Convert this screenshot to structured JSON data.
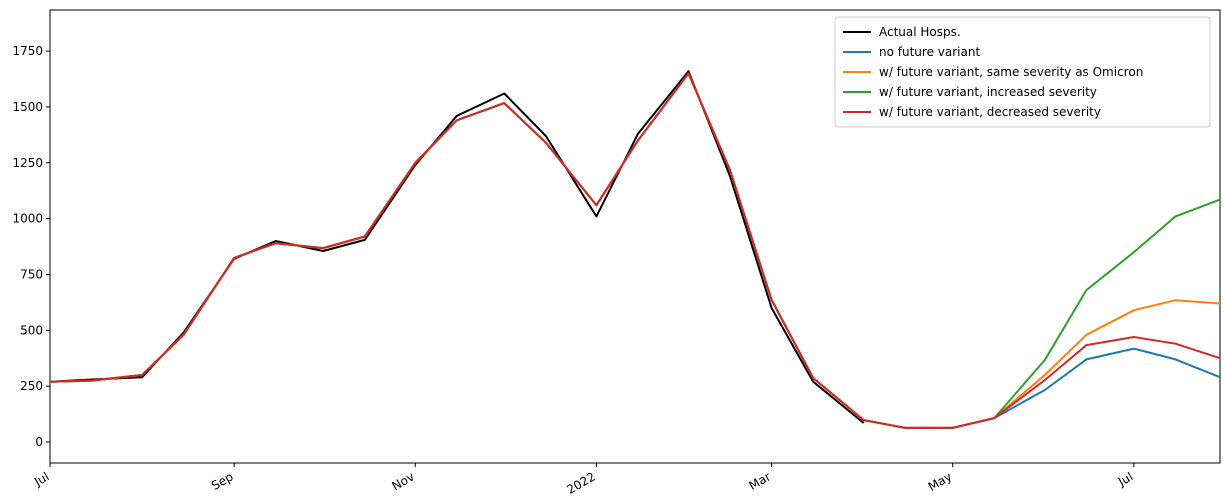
{
  "chart_data": {
    "type": "line",
    "x": [
      "2021-07-01",
      "2021-07-15",
      "2021-08-01",
      "2021-08-15",
      "2021-09-01",
      "2021-09-15",
      "2021-10-01",
      "2021-10-15",
      "2021-11-01",
      "2021-11-15",
      "2021-12-01",
      "2021-12-15",
      "2022-01-01",
      "2022-01-15",
      "2022-02-01",
      "2022-02-15",
      "2022-03-01",
      "2022-03-15",
      "2022-04-01",
      "2022-04-15",
      "2022-05-01",
      "2022-05-15",
      "2022-06-01",
      "2022-06-15",
      "2022-07-01",
      "2022-07-15",
      "2022-07-30"
    ],
    "series": [
      {
        "name": "Actual Hosps.",
        "color": "#000000",
        "values": [
          270,
          280,
          290,
          490,
          820,
          900,
          855,
          905,
          1240,
          1460,
          1560,
          1370,
          1010,
          1380,
          1660,
          1190,
          600,
          270,
          85,
          null,
          null,
          null,
          null,
          null,
          null,
          null,
          null
        ]
      },
      {
        "name": "no future variant",
        "color": "#1f77b4",
        "values": [
          270,
          275,
          300,
          480,
          824,
          890,
          868,
          920,
          1250,
          1440,
          1517,
          1340,
          1060,
          1350,
          1650,
          1217,
          636,
          286,
          98,
          63,
          63,
          107,
          233,
          370,
          418,
          370,
          290
        ]
      },
      {
        "name": "w/ future variant, same severity as Omicron",
        "color": "#ff7f0e",
        "values": [
          270,
          275,
          300,
          480,
          824,
          890,
          868,
          920,
          1250,
          1440,
          1517,
          1340,
          1060,
          1350,
          1650,
          1217,
          636,
          286,
          98,
          63,
          63,
          107,
          300,
          480,
          590,
          635,
          620
        ]
      },
      {
        "name": "w/ future variant, increased severity",
        "color": "#2ca02c",
        "values": [
          270,
          275,
          300,
          480,
          824,
          890,
          868,
          920,
          1250,
          1440,
          1517,
          1340,
          1060,
          1350,
          1650,
          1217,
          636,
          286,
          98,
          63,
          63,
          107,
          367,
          680,
          850,
          1010,
          1085
        ]
      },
      {
        "name": "w/ future variant, decreased severity",
        "color": "#d62728",
        "values": [
          270,
          275,
          300,
          480,
          824,
          890,
          868,
          920,
          1250,
          1440,
          1517,
          1340,
          1060,
          1350,
          1650,
          1217,
          636,
          286,
          98,
          63,
          63,
          107,
          277,
          434,
          470,
          440,
          375
        ]
      }
    ],
    "xlim": [
      "2021-07-01",
      "2022-07-30"
    ],
    "xticks": [
      {
        "value": "2021-07-01",
        "label": "Jul"
      },
      {
        "value": "2021-09-01",
        "label": "Sep"
      },
      {
        "value": "2021-11-01",
        "label": "Nov"
      },
      {
        "value": "2022-01-01",
        "label": "2022"
      },
      {
        "value": "2022-03-01",
        "label": "Mar"
      },
      {
        "value": "2022-05-01",
        "label": "May"
      },
      {
        "value": "2022-07-01",
        "label": "Jul"
      }
    ],
    "ylim": [
      -94,
      1934
    ],
    "yticks": [
      0,
      250,
      500,
      750,
      1000,
      1250,
      1500,
      1750
    ],
    "legend": "upper right",
    "grid": false
  }
}
